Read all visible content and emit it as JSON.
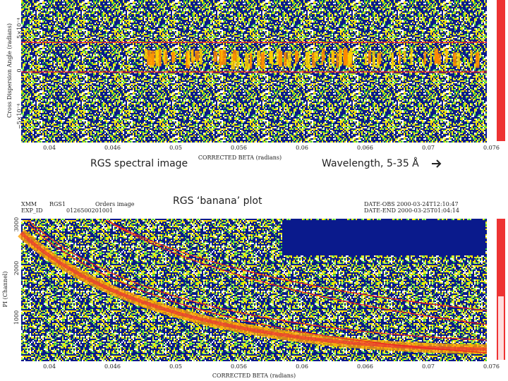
{
  "top_plot": {
    "y_label": "Cross Dispersion Angle (radians)",
    "y_ticks": [
      "5×10⁻⁴",
      "0",
      "−5×10⁻⁴"
    ],
    "x_ticks": [
      "0.04",
      "0.046",
      "0.05",
      "0.056",
      "0.06",
      "0.066",
      "0.07",
      "0.076"
    ],
    "x_label": "CORRECTED BETA (radians)"
  },
  "captions": {
    "spectral": "RGS spectral image",
    "wavelength": "Wavelength, 5-35 Å",
    "banana": "RGS ‘banana’ plot"
  },
  "bottom_plot": {
    "header": {
      "mission": "XMM",
      "exp_id": "EXP_ID",
      "instrument": "RGS1",
      "image": "Orders image",
      "id": "0126500201001",
      "date_obs": "DATE-OBS 2000-03-24T12:10:47",
      "date_end": "DATE-END 2000-03-25T01:04:14"
    },
    "y_label": "PI (Channel)",
    "y_ticks": [
      "3000",
      "2000",
      "1000"
    ],
    "x_ticks": [
      "0.04",
      "0.046",
      "0.05",
      "0.056",
      "0.06",
      "0.066",
      "0.07",
      "0.076"
    ],
    "x_label": "CORRECTED BETA (radians)"
  }
}
